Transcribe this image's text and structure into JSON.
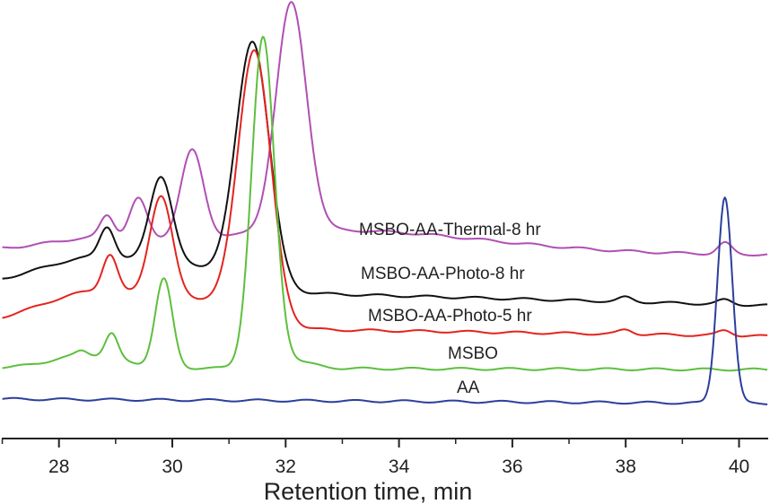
{
  "chart_data": {
    "type": "line",
    "title": "",
    "xlabel": "Retention time, min",
    "ylabel": "",
    "xlim": [
      27,
      40.5
    ],
    "ylim": [
      0,
      100
    ],
    "x_ticks": [
      28,
      30,
      32,
      34,
      36,
      38,
      40
    ],
    "x_minor_ticks": [
      27,
      29,
      31,
      33,
      35,
      37,
      39
    ],
    "grid": false,
    "legend": "inline labels",
    "series": [
      {
        "name": "MSBO-AA-Thermal-8 hr",
        "color": "#b14fb4",
        "baseline": [
          43,
          42
        ],
        "peaks": [
          [
            28.85,
            5,
            0.12
          ],
          [
            29.4,
            9,
            0.15
          ],
          [
            30.35,
            20,
            0.2
          ],
          [
            32.1,
            52,
            0.27
          ],
          [
            39.75,
            2.5,
            0.12
          ],
          [
            28.6,
            2,
            0.8
          ],
          [
            33,
            5,
            2.5
          ]
        ]
      },
      {
        "name": "MSBO-AA-Photo-8 hr",
        "color": "#111111",
        "baseline": [
          35,
          30.5
        ],
        "peaks": [
          [
            28.85,
            7,
            0.13
          ],
          [
            29.8,
            20,
            0.2
          ],
          [
            31.42,
            55,
            0.29
          ],
          [
            38,
            1,
            0.12
          ],
          [
            39.75,
            1,
            0.12
          ],
          [
            28.7,
            7,
            1.0
          ],
          [
            30.6,
            4,
            0.7
          ]
        ]
      },
      {
        "name": "MSBO-AA-Photo-5 hr",
        "color": "#e3241f",
        "baseline": [
          26,
          23.5
        ],
        "peaks": [
          [
            28.9,
            8.4,
            0.13
          ],
          [
            29.8,
            23,
            0.2
          ],
          [
            31.45,
            61,
            0.29
          ],
          [
            38,
            1,
            0.12
          ],
          [
            39.75,
            1.2,
            0.12
          ],
          [
            28.7,
            8,
            1.0
          ],
          [
            30.6,
            5,
            0.7
          ]
        ]
      },
      {
        "name": "MSBO",
        "color": "#5dbf3d",
        "baseline": [
          16.3,
          15.9
        ],
        "peaks": [
          [
            28.4,
            1,
            0.1
          ],
          [
            28.93,
            5.5,
            0.11
          ],
          [
            29.85,
            20,
            0.15
          ],
          [
            31.6,
            74,
            0.2
          ],
          [
            28.5,
            3,
            0.6
          ],
          [
            32.0,
            2,
            0.4
          ]
        ]
      },
      {
        "name": "AA",
        "color": "#2c3f9b",
        "baseline": [
          9.2,
          8.2
        ],
        "peaks": [
          [
            39.75,
            47,
            0.13
          ]
        ]
      }
    ]
  }
}
